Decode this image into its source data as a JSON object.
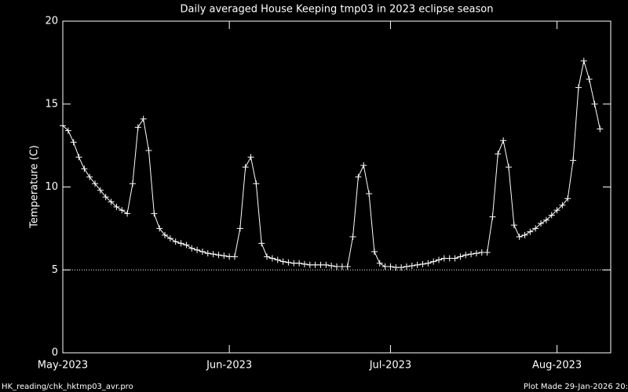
{
  "chart_data": {
    "type": "line",
    "title": "Daily averaged House Keeping tmp03 in 2023 eclipse season",
    "y_label": "Temperature (C)",
    "x": [
      0,
      1,
      2,
      3,
      4,
      5,
      6,
      7,
      8,
      9,
      10,
      11,
      12,
      13,
      14,
      15,
      16,
      17,
      18,
      19,
      20,
      21,
      22,
      23,
      24,
      25,
      26,
      27,
      28,
      29,
      30,
      31,
      32,
      33,
      34,
      35,
      36,
      37,
      38,
      39,
      40,
      41,
      42,
      43,
      44,
      45,
      46,
      47,
      48,
      49,
      50,
      51,
      52,
      53,
      54,
      55,
      56,
      57,
      58,
      59,
      60,
      61,
      62,
      63,
      64,
      65,
      66,
      67,
      68,
      69,
      70,
      71,
      72,
      73,
      74,
      75,
      76,
      77,
      78,
      79,
      80,
      81,
      82,
      83,
      84,
      85,
      86,
      87,
      88,
      89,
      90,
      91,
      92,
      93,
      94,
      95,
      96,
      97,
      98,
      99,
      100
    ],
    "series": [
      {
        "name": "tmp03",
        "color": "#ffffff",
        "marker": "plus",
        "values": [
          13.7,
          13.4,
          12.7,
          11.8,
          11.1,
          10.6,
          10.2,
          9.8,
          9.4,
          9.1,
          8.8,
          8.6,
          8.4,
          10.2,
          13.6,
          14.1,
          12.2,
          8.4,
          7.5,
          7.1,
          6.9,
          6.7,
          6.6,
          6.5,
          6.3,
          6.2,
          6.1,
          6.0,
          5.95,
          5.9,
          5.85,
          5.8,
          5.8,
          7.5,
          11.2,
          11.8,
          10.2,
          6.6,
          5.8,
          5.7,
          5.6,
          5.5,
          5.45,
          5.4,
          5.4,
          5.35,
          5.3,
          5.3,
          5.3,
          5.3,
          5.25,
          5.2,
          5.2,
          5.2,
          7.0,
          10.6,
          11.3,
          9.6,
          6.1,
          5.4,
          5.2,
          5.2,
          5.15,
          5.15,
          5.2,
          5.25,
          5.3,
          5.35,
          5.4,
          5.5,
          5.6,
          5.7,
          5.7,
          5.7,
          5.8,
          5.9,
          5.95,
          6.0,
          6.05,
          6.05,
          8.2,
          12.0,
          12.8,
          11.2,
          7.7,
          7.0,
          7.1,
          7.3,
          7.5,
          7.8,
          8.0,
          8.3,
          8.6,
          8.9,
          9.3,
          11.6,
          16.0,
          17.6,
          16.5,
          15.0,
          13.5
        ]
      }
    ],
    "xlim": [
      0,
      102
    ],
    "xticks": [
      {
        "value": 0,
        "label": "May-2023"
      },
      {
        "value": 31,
        "label": "Jun-2023"
      },
      {
        "value": 61,
        "label": "Jul-2023"
      },
      {
        "value": 92,
        "label": "Aug-2023"
      }
    ],
    "ylim": [
      0,
      20
    ],
    "yticks": [
      0,
      5,
      10,
      15,
      20
    ],
    "reference_line": 5,
    "footer_left": "HK_reading/chk_hktmp03_avr.pro",
    "footer_right": "Plot Made 29-Jan-2026 20:"
  }
}
